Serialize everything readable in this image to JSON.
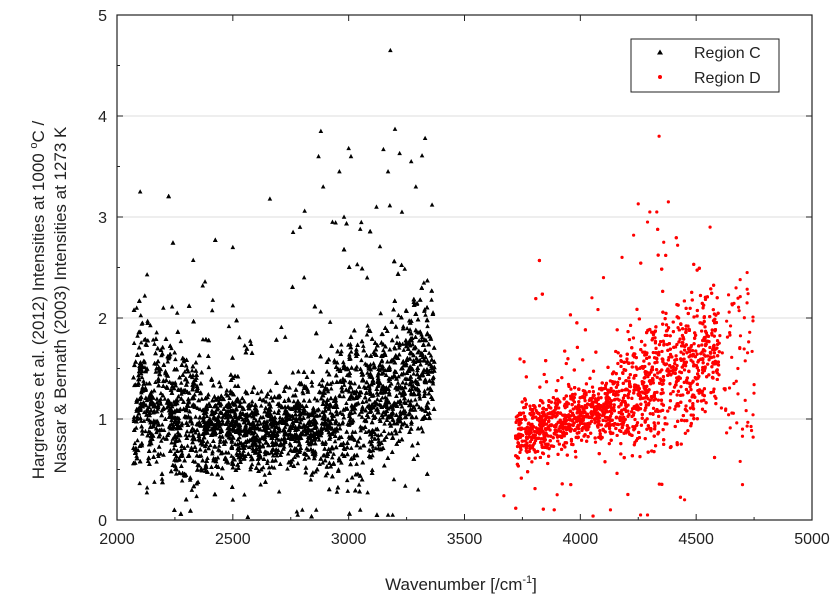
{
  "chart_data": {
    "type": "scatter",
    "title": "",
    "xlabel": "Wavenumber [/cm",
    "xlabel_sup": "-1",
    "xlabel_tail": "]",
    "ylabel_line1": "Hargreaves et al. (2012) Intensities at 1000 ",
    "ylabel_line1_sup": "o",
    "ylabel_line1_tail": "C /",
    "ylabel_line2": "Nassar & Bernath (2003) Intensities at 1273 K",
    "xlim": [
      2000,
      5000
    ],
    "ylim": [
      0,
      5
    ],
    "xticks": [
      2000,
      2500,
      3000,
      3500,
      4000,
      4500,
      5000
    ],
    "yticks": [
      0,
      1,
      2,
      3,
      4,
      5
    ],
    "grid": true,
    "legend_position": "top-right",
    "series": [
      {
        "name": "Region C",
        "marker": "triangle",
        "color": "#000000",
        "x_range": [
          2070,
          3370
        ],
        "points": [
          [
            2100,
            3.25
          ],
          [
            2130,
            2.43
          ],
          [
            2120,
            2.22
          ],
          [
            2085,
            2.1
          ],
          [
            2130,
            0.32
          ],
          [
            2110,
            1.95
          ],
          [
            2200,
            2.1
          ],
          [
            2260,
            2.05
          ],
          [
            2380,
            2.36
          ],
          [
            2370,
            2.32
          ],
          [
            2500,
            2.7
          ],
          [
            2660,
            3.18
          ],
          [
            2760,
            2.85
          ],
          [
            2790,
            2.9
          ],
          [
            2810,
            3.06
          ],
          [
            2870,
            3.6
          ],
          [
            2880,
            3.85
          ],
          [
            2890,
            3.3
          ],
          [
            2960,
            3.45
          ],
          [
            3000,
            3.68
          ],
          [
            3010,
            3.6
          ],
          [
            3150,
            3.67
          ],
          [
            3180,
            4.65
          ],
          [
            3200,
            3.87
          ],
          [
            3220,
            3.63
          ],
          [
            3270,
            3.55
          ],
          [
            3330,
            3.78
          ],
          [
            3360,
            3.12
          ],
          [
            3230,
            3.05
          ],
          [
            3290,
            3.3
          ],
          [
            2930,
            2.95
          ],
          [
            3050,
            2.88
          ],
          [
            3120,
            3.1
          ],
          [
            3170,
            3.45
          ],
          [
            2980,
            3.0
          ],
          [
            2500,
            0.2
          ],
          [
            2550,
            0.25
          ],
          [
            2620,
            0.35
          ],
          [
            2700,
            0.28
          ],
          [
            2780,
            0.05
          ],
          [
            2800,
            0.1
          ],
          [
            2860,
            0.1
          ],
          [
            3050,
            0.1
          ],
          [
            3170,
            0.05
          ],
          [
            3190,
            0.05
          ],
          [
            3300,
            0.3
          ]
        ]
      },
      {
        "name": "Region D",
        "marker": "circle",
        "color": "#ff0000",
        "x_range": [
          3660,
          4760
        ],
        "points": [
          [
            4340,
            3.8
          ],
          [
            4250,
            3.13
          ],
          [
            4300,
            3.05
          ],
          [
            4380,
            3.15
          ],
          [
            4330,
            3.05
          ],
          [
            4290,
            2.95
          ],
          [
            4230,
            2.82
          ],
          [
            4360,
            2.75
          ],
          [
            4420,
            2.72
          ],
          [
            4560,
            2.9
          ],
          [
            4720,
            2.45
          ],
          [
            4690,
            2.38
          ],
          [
            4750,
            1.34
          ],
          [
            4700,
            0.9
          ],
          [
            4690,
            0.58
          ],
          [
            3670,
            0.24
          ],
          [
            3900,
            0.25
          ],
          [
            4260,
            0.05
          ],
          [
            4290,
            0.05
          ],
          [
            4450,
            0.2
          ],
          [
            4130,
            0.1
          ],
          [
            4700,
            0.35
          ],
          [
            4180,
            2.6
          ],
          [
            4100,
            2.4
          ],
          [
            4050,
            2.2
          ]
        ]
      }
    ]
  }
}
